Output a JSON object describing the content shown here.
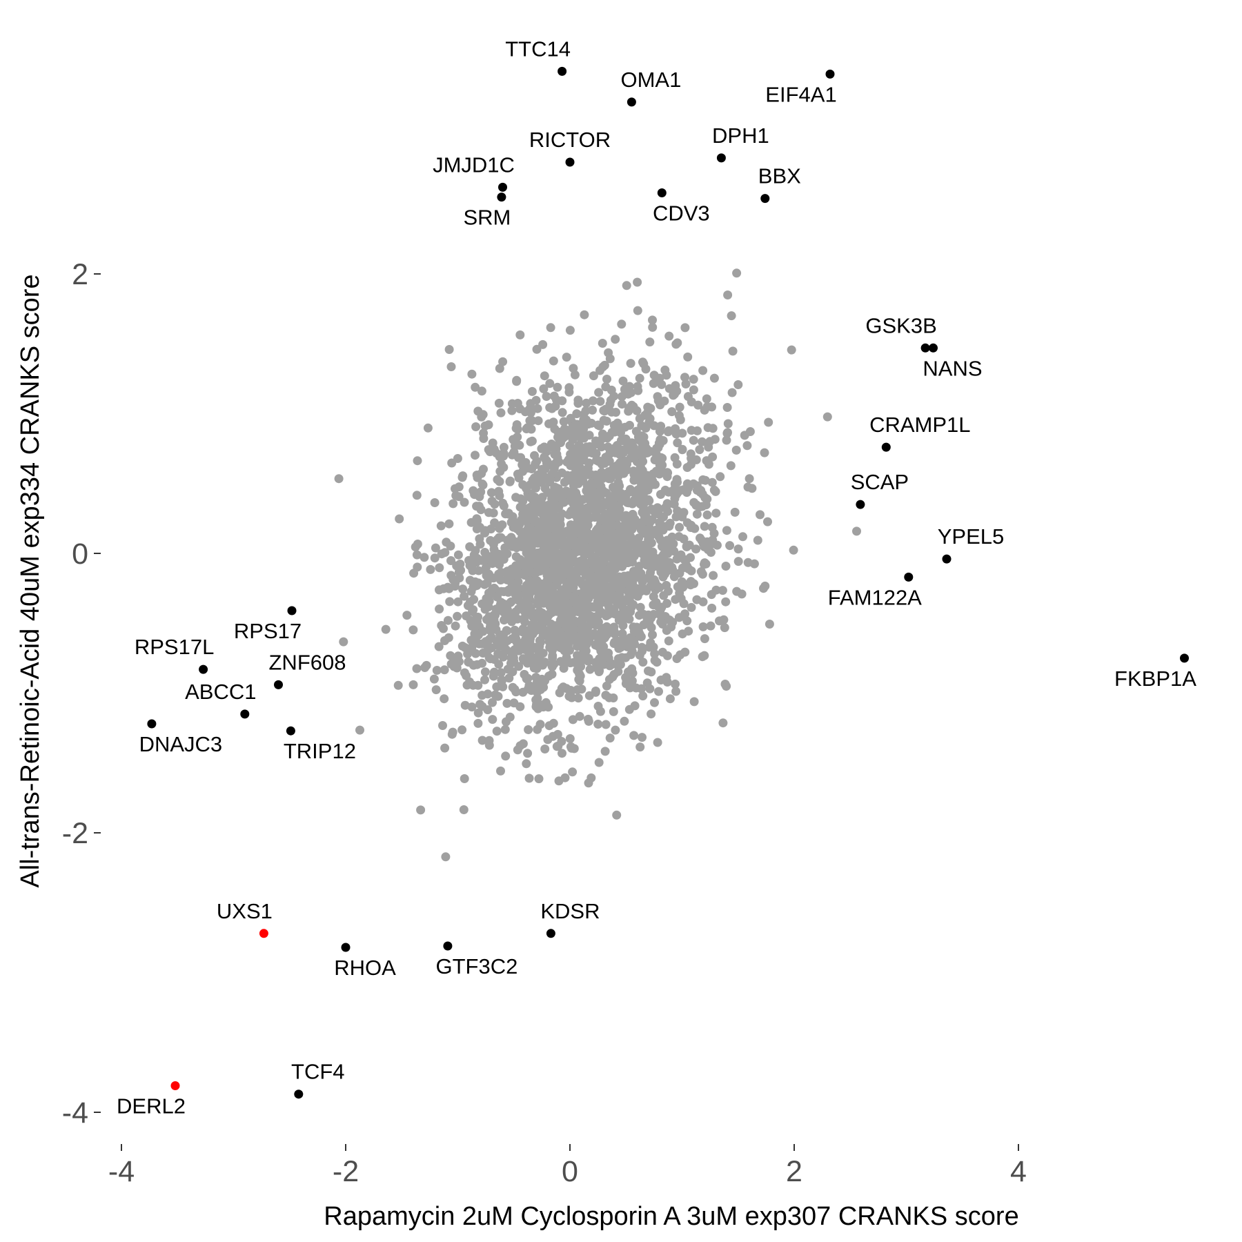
{
  "chart_data": {
    "type": "scatter",
    "xlabel": "Rapamycin 2uM Cyclosporin A 3uM exp307 CRANKS score",
    "ylabel": "All-trans-Retinoic-Acid 40uM exp334 CRANKS score",
    "xlim": [
      -4.4,
      5.8
    ],
    "ylim": [
      -4.2,
      3.9
    ],
    "x_ticks": [
      -4,
      -2,
      0,
      2,
      4
    ],
    "x_tick_labels": [
      "-4",
      "-2",
      "0",
      "2",
      "4"
    ],
    "y_ticks": [
      -4,
      -2,
      0,
      2
    ],
    "y_tick_labels": [
      "-4",
      "-2",
      "0",
      "2"
    ],
    "grid": false,
    "colors": {
      "background_points": "#a0a0a0",
      "highlight": "#000000",
      "highlight_red": "#ff0000",
      "tick_text": "#4d4d4d"
    },
    "background_cloud": {
      "description_count": 2600,
      "center": [
        0.1,
        0.0
      ],
      "sd": [
        0.6,
        0.62
      ],
      "correlation": 0.3
    },
    "labeled_points": [
      {
        "label": "TTC14",
        "x": -0.07,
        "y": 3.45,
        "color": "#000000",
        "label_pos": "above-left"
      },
      {
        "label": "OMA1",
        "x": 0.55,
        "y": 3.23,
        "color": "#000000",
        "label_pos": "above-right"
      },
      {
        "label": "EIF4A1",
        "x": 2.32,
        "y": 3.43,
        "color": "#000000",
        "label_pos": "below-left"
      },
      {
        "label": "RICTOR",
        "x": 0.0,
        "y": 2.8,
        "color": "#000000",
        "label_pos": "above"
      },
      {
        "label": "DPH1",
        "x": 1.35,
        "y": 2.83,
        "color": "#000000",
        "label_pos": "above-right"
      },
      {
        "label": "JMJD1C",
        "x": -0.6,
        "y": 2.62,
        "color": "#000000",
        "label_pos": "above-left"
      },
      {
        "label": "SRM",
        "x": -0.61,
        "y": 2.55,
        "color": "#000000",
        "label_pos": "below-left"
      },
      {
        "label": "CDV3",
        "x": 0.82,
        "y": 2.58,
        "color": "#000000",
        "label_pos": "below-right"
      },
      {
        "label": "BBX",
        "x": 1.74,
        "y": 2.54,
        "color": "#000000",
        "label_pos": "above-right"
      },
      {
        "label": "GSK3B",
        "x": 3.17,
        "y": 1.47,
        "color": "#000000",
        "label_pos": "above-left"
      },
      {
        "label": "NANS",
        "x": 3.24,
        "y": 1.47,
        "color": "#000000",
        "label_pos": "below-right"
      },
      {
        "label": "CRAMP1L",
        "x": 2.82,
        "y": 0.76,
        "color": "#000000",
        "label_pos": "above-right"
      },
      {
        "label": "SCAP",
        "x": 2.59,
        "y": 0.35,
        "color": "#000000",
        "label_pos": "above-right"
      },
      {
        "label": "YPEL5",
        "x": 3.36,
        "y": -0.04,
        "color": "#000000",
        "label_pos": "above-right"
      },
      {
        "label": "FAM122A",
        "x": 3.02,
        "y": -0.17,
        "color": "#000000",
        "label_pos": "below-left"
      },
      {
        "label": "FKBP1A",
        "x": 5.48,
        "y": -0.75,
        "color": "#000000",
        "label_pos": "below-left"
      },
      {
        "label": "RPS17",
        "x": -2.48,
        "y": -0.41,
        "color": "#000000",
        "label_pos": "below-left"
      },
      {
        "label": "RPS17L",
        "x": -3.27,
        "y": -0.83,
        "color": "#000000",
        "label_pos": "above-left"
      },
      {
        "label": "ZNF608",
        "x": -2.6,
        "y": -0.94,
        "color": "#000000",
        "label_pos": "above-right"
      },
      {
        "label": "ABCC1",
        "x": -2.9,
        "y": -1.15,
        "color": "#000000",
        "label_pos": "above-left"
      },
      {
        "label": "DNAJC3",
        "x": -3.73,
        "y": -1.22,
        "color": "#000000",
        "label_pos": "below-right"
      },
      {
        "label": "TRIP12",
        "x": -2.49,
        "y": -1.27,
        "color": "#000000",
        "label_pos": "below-right"
      },
      {
        "label": "UXS1",
        "x": -2.73,
        "y": -2.72,
        "color": "#ff0000",
        "label_pos": "above-left"
      },
      {
        "label": "RHOA",
        "x": -2.0,
        "y": -2.82,
        "color": "#000000",
        "label_pos": "below-right"
      },
      {
        "label": "GTF3C2",
        "x": -1.09,
        "y": -2.81,
        "color": "#000000",
        "label_pos": "below-right"
      },
      {
        "label": "KDSR",
        "x": -0.17,
        "y": -2.72,
        "color": "#000000",
        "label_pos": "above-right"
      },
      {
        "label": "TCF4",
        "x": -2.42,
        "y": -3.87,
        "color": "#000000",
        "label_pos": "above-right"
      },
      {
        "label": "DERL2",
        "x": -3.52,
        "y": -3.81,
        "color": "#ff0000",
        "label_pos": "below-left"
      }
    ]
  }
}
